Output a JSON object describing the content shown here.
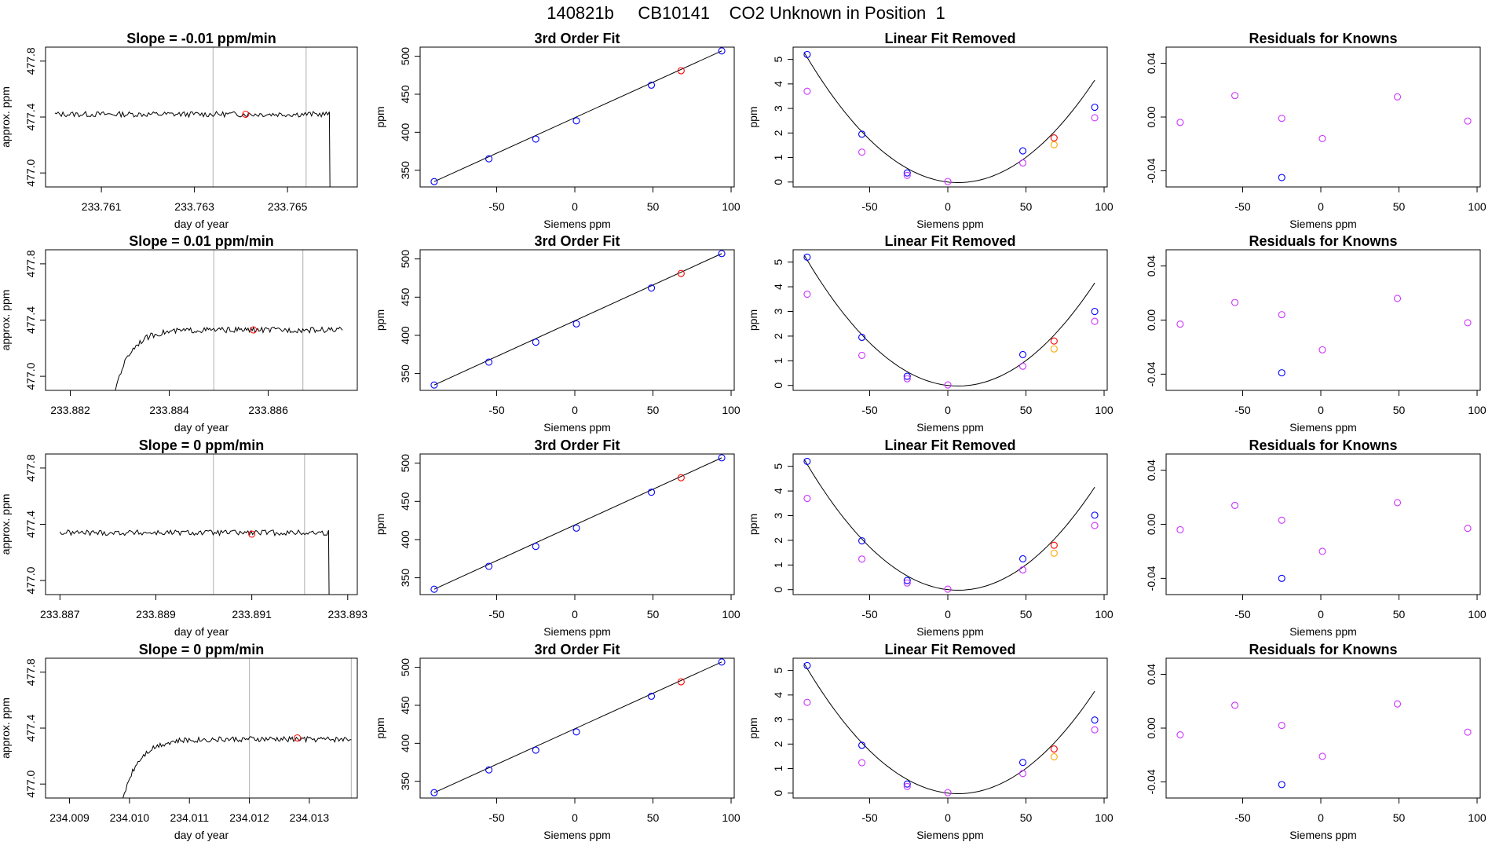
{
  "header": {
    "title": "140821b     CB10141    CO2 Unknown in Position  1"
  },
  "colors": {
    "black": "#000000",
    "blue": "#0000ff",
    "red": "#ff0000",
    "magenta": "#cc33ff",
    "orange": "#ffa500",
    "grey": "#bbbbbb"
  },
  "chart_data": [
    {
      "type": "line",
      "row": 1,
      "title": "Slope =  -0.01  ppm/min",
      "xlabel": "day of year",
      "ylabel": "approx. ppm",
      "xticks": [
        "233.761",
        "233.763",
        "233.765"
      ],
      "yticks": [
        "477.0",
        "477.4",
        "477.8"
      ],
      "xlim": [
        233.7598,
        233.7665
      ],
      "ylim": [
        476.9,
        477.9
      ],
      "vlines": [
        233.7634,
        233.7654
      ],
      "trace_level": 477.42,
      "trace_start": 233.76,
      "trace_end": 233.7659,
      "drop_at": 233.7659,
      "rise_at": null,
      "marker": {
        "x": 233.7641,
        "y": 477.42
      }
    },
    {
      "type": "scatter",
      "row": 1,
      "title": "3rd Order Fit",
      "xlabel": "Siemens ppm",
      "ylabel": "ppm",
      "xticks": [
        "-50",
        "0",
        "50",
        "100"
      ],
      "yticks": [
        "350",
        "400",
        "450",
        "500"
      ],
      "xlim": [
        -99,
        102
      ],
      "ylim": [
        328,
        512
      ],
      "points": [
        {
          "x": -90,
          "y": 335,
          "c": "blue"
        },
        {
          "x": -55,
          "y": 365,
          "c": "blue"
        },
        {
          "x": -25,
          "y": 391,
          "c": "blue"
        },
        {
          "x": 1,
          "y": 415,
          "c": "blue"
        },
        {
          "x": 49,
          "y": 462,
          "c": "blue"
        },
        {
          "x": 68,
          "y": 481,
          "c": "red"
        },
        {
          "x": 94,
          "y": 507,
          "c": "blue"
        }
      ],
      "line": [
        [
          -90,
          335
        ],
        [
          94,
          507
        ]
      ]
    },
    {
      "type": "scatter",
      "row": 1,
      "title": "Linear Fit Removed",
      "xlabel": "Siemens ppm",
      "ylabel": "ppm",
      "xticks": [
        "-50",
        "0",
        "50",
        "100"
      ],
      "yticks": [
        "0",
        "1",
        "2",
        "3",
        "4",
        "5"
      ],
      "xlim": [
        -99,
        102
      ],
      "ylim": [
        -0.2,
        5.5
      ],
      "points": [
        {
          "x": -90,
          "y": 5.2,
          "c": "blue"
        },
        {
          "x": -90,
          "y": 3.7,
          "c": "magenta"
        },
        {
          "x": -55,
          "y": 1.95,
          "c": "blue"
        },
        {
          "x": -55,
          "y": 1.22,
          "c": "magenta"
        },
        {
          "x": -26,
          "y": 0.37,
          "c": "blue"
        },
        {
          "x": -26,
          "y": 0.27,
          "c": "magenta"
        },
        {
          "x": 0,
          "y": 0.02,
          "c": "magenta"
        },
        {
          "x": 48,
          "y": 1.27,
          "c": "blue"
        },
        {
          "x": 48,
          "y": 0.78,
          "c": "magenta"
        },
        {
          "x": 68,
          "y": 1.8,
          "c": "red"
        },
        {
          "x": 68,
          "y": 1.52,
          "c": "orange"
        },
        {
          "x": 94,
          "y": 3.05,
          "c": "blue"
        },
        {
          "x": 94,
          "y": 2.62,
          "c": "magenta"
        }
      ],
      "curve": {
        "a": 0.000547,
        "b": -0.0072,
        "c": 0
      }
    },
    {
      "type": "scatter",
      "row": 1,
      "title": "Residuals for Knowns",
      "xlabel": "Siemens ppm",
      "ylabel": "",
      "xticks": [
        "-50",
        "0",
        "50",
        "100"
      ],
      "yticks": [
        "-0.04",
        "0.00",
        "0.04"
      ],
      "xlim": [
        -99,
        102
      ],
      "ylim": [
        -0.052,
        0.052
      ],
      "points": [
        {
          "x": -90,
          "y": -0.004,
          "c": "magenta"
        },
        {
          "x": -55,
          "y": 0.016,
          "c": "magenta"
        },
        {
          "x": -25,
          "y": -0.001,
          "c": "magenta"
        },
        {
          "x": -25,
          "y": -0.045,
          "c": "blue"
        },
        {
          "x": 1,
          "y": -0.016,
          "c": "magenta"
        },
        {
          "x": 49,
          "y": 0.015,
          "c": "magenta"
        },
        {
          "x": 94,
          "y": -0.003,
          "c": "magenta"
        }
      ]
    },
    {
      "type": "line",
      "row": 2,
      "title": "Slope =  0.01  ppm/min",
      "xlabel": "day of year",
      "ylabel": "approx. ppm",
      "xticks": [
        "233.882",
        "233.884",
        "233.886"
      ],
      "yticks": [
        "477.0",
        "477.4",
        "477.8"
      ],
      "xlim": [
        233.8815,
        233.8878
      ],
      "ylim": [
        476.9,
        477.9
      ],
      "vlines": [
        233.8849,
        233.8867
      ],
      "trace_level": 477.33,
      "trace_start": 233.8828,
      "trace_end": 233.8875,
      "drop_at": null,
      "rise_at": 233.8828,
      "marker": {
        "x": 233.8857,
        "y": 477.33
      }
    },
    {
      "type": "scatter",
      "row": 2,
      "title": "3rd Order Fit",
      "xlabel": "Siemens ppm",
      "ylabel": "ppm",
      "xticks": [
        "-50",
        "0",
        "50",
        "100"
      ],
      "yticks": [
        "350",
        "400",
        "450",
        "500"
      ],
      "xlim": [
        -99,
        102
      ],
      "ylim": [
        328,
        512
      ],
      "points": [
        {
          "x": -90,
          "y": 335,
          "c": "blue"
        },
        {
          "x": -55,
          "y": 365,
          "c": "blue"
        },
        {
          "x": -25,
          "y": 391,
          "c": "blue"
        },
        {
          "x": 1,
          "y": 415,
          "c": "blue"
        },
        {
          "x": 49,
          "y": 462,
          "c": "blue"
        },
        {
          "x": 68,
          "y": 481,
          "c": "red"
        },
        {
          "x": 94,
          "y": 507,
          "c": "blue"
        }
      ],
      "line": [
        [
          -90,
          335
        ],
        [
          94,
          507
        ]
      ]
    },
    {
      "type": "scatter",
      "row": 2,
      "title": "Linear Fit Removed",
      "xlabel": "Siemens ppm",
      "ylabel": "ppm",
      "xticks": [
        "-50",
        "0",
        "50",
        "100"
      ],
      "yticks": [
        "0",
        "1",
        "2",
        "3",
        "4",
        "5"
      ],
      "xlim": [
        -99,
        102
      ],
      "ylim": [
        -0.2,
        5.5
      ],
      "points": [
        {
          "x": -90,
          "y": 5.2,
          "c": "blue"
        },
        {
          "x": -90,
          "y": 3.7,
          "c": "magenta"
        },
        {
          "x": -55,
          "y": 1.95,
          "c": "blue"
        },
        {
          "x": -55,
          "y": 1.22,
          "c": "magenta"
        },
        {
          "x": -26,
          "y": 0.37,
          "c": "blue"
        },
        {
          "x": -26,
          "y": 0.27,
          "c": "magenta"
        },
        {
          "x": 0,
          "y": 0.02,
          "c": "magenta"
        },
        {
          "x": 48,
          "y": 1.25,
          "c": "blue"
        },
        {
          "x": 48,
          "y": 0.78,
          "c": "magenta"
        },
        {
          "x": 68,
          "y": 1.8,
          "c": "red"
        },
        {
          "x": 68,
          "y": 1.48,
          "c": "orange"
        },
        {
          "x": 94,
          "y": 3.0,
          "c": "blue"
        },
        {
          "x": 94,
          "y": 2.6,
          "c": "magenta"
        }
      ],
      "curve": {
        "a": 0.000547,
        "b": -0.0072,
        "c": 0
      }
    },
    {
      "type": "scatter",
      "row": 2,
      "title": "Residuals for Knowns",
      "xlabel": "Siemens ppm",
      "ylabel": "",
      "xticks": [
        "-50",
        "0",
        "50",
        "100"
      ],
      "yticks": [
        "-0.04",
        "0.00",
        "0.04"
      ],
      "xlim": [
        -99,
        102
      ],
      "ylim": [
        -0.052,
        0.052
      ],
      "points": [
        {
          "x": -90,
          "y": -0.003,
          "c": "magenta"
        },
        {
          "x": -55,
          "y": 0.013,
          "c": "magenta"
        },
        {
          "x": -25,
          "y": 0.004,
          "c": "magenta"
        },
        {
          "x": -25,
          "y": -0.039,
          "c": "blue"
        },
        {
          "x": 1,
          "y": -0.022,
          "c": "magenta"
        },
        {
          "x": 49,
          "y": 0.016,
          "c": "magenta"
        },
        {
          "x": 94,
          "y": -0.002,
          "c": "magenta"
        }
      ]
    },
    {
      "type": "line",
      "row": 3,
      "title": "Slope =  0  ppm/min",
      "xlabel": "day of year",
      "ylabel": "approx. ppm",
      "xticks": [
        "233.887",
        "233.889",
        "233.891",
        "233.893"
      ],
      "yticks": [
        "477.0",
        "477.4",
        "477.8"
      ],
      "xlim": [
        233.8867,
        233.8932
      ],
      "ylim": [
        476.9,
        477.9
      ],
      "vlines": [
        233.8902,
        233.8921
      ],
      "trace_level": 477.34,
      "trace_start": 233.887,
      "trace_end": 233.8926,
      "drop_at": 233.8926,
      "rise_at": null,
      "marker": {
        "x": 233.891,
        "y": 477.33
      }
    },
    {
      "type": "scatter",
      "row": 3,
      "title": "3rd Order Fit",
      "xlabel": "Siemens ppm",
      "ylabel": "ppm",
      "xticks": [
        "-50",
        "0",
        "50",
        "100"
      ],
      "yticks": [
        "350",
        "400",
        "450",
        "500"
      ],
      "xlim": [
        -99,
        102
      ],
      "ylim": [
        328,
        512
      ],
      "points": [
        {
          "x": -90,
          "y": 335,
          "c": "blue"
        },
        {
          "x": -55,
          "y": 365,
          "c": "blue"
        },
        {
          "x": -25,
          "y": 391,
          "c": "blue"
        },
        {
          "x": 1,
          "y": 415,
          "c": "blue"
        },
        {
          "x": 49,
          "y": 462,
          "c": "blue"
        },
        {
          "x": 68,
          "y": 481,
          "c": "red"
        },
        {
          "x": 94,
          "y": 507,
          "c": "blue"
        }
      ],
      "line": [
        [
          -90,
          335
        ],
        [
          94,
          507
        ]
      ]
    },
    {
      "type": "scatter",
      "row": 3,
      "title": "Linear Fit Removed",
      "xlabel": "Siemens ppm",
      "ylabel": "ppm",
      "xticks": [
        "-50",
        "0",
        "50",
        "100"
      ],
      "yticks": [
        "0",
        "1",
        "2",
        "3",
        "4",
        "5"
      ],
      "xlim": [
        -99,
        102
      ],
      "ylim": [
        -0.2,
        5.5
      ],
      "points": [
        {
          "x": -90,
          "y": 5.2,
          "c": "blue"
        },
        {
          "x": -90,
          "y": 3.7,
          "c": "magenta"
        },
        {
          "x": -55,
          "y": 1.98,
          "c": "blue"
        },
        {
          "x": -55,
          "y": 1.24,
          "c": "magenta"
        },
        {
          "x": -26,
          "y": 0.37,
          "c": "blue"
        },
        {
          "x": -26,
          "y": 0.27,
          "c": "magenta"
        },
        {
          "x": 0,
          "y": 0.02,
          "c": "magenta"
        },
        {
          "x": 48,
          "y": 1.25,
          "c": "blue"
        },
        {
          "x": 48,
          "y": 0.8,
          "c": "magenta"
        },
        {
          "x": 68,
          "y": 1.8,
          "c": "red"
        },
        {
          "x": 68,
          "y": 1.48,
          "c": "orange"
        },
        {
          "x": 94,
          "y": 3.02,
          "c": "blue"
        },
        {
          "x": 94,
          "y": 2.6,
          "c": "magenta"
        }
      ],
      "curve": {
        "a": 0.000547,
        "b": -0.0072,
        "c": 0
      }
    },
    {
      "type": "scatter",
      "row": 3,
      "title": "Residuals for Knowns",
      "xlabel": "Siemens ppm",
      "ylabel": "",
      "xticks": [
        "-50",
        "0",
        "50",
        "100"
      ],
      "yticks": [
        "-0.04",
        "0.00",
        "0.04"
      ],
      "xlim": [
        -99,
        102
      ],
      "ylim": [
        -0.052,
        0.052
      ],
      "points": [
        {
          "x": -90,
          "y": -0.004,
          "c": "magenta"
        },
        {
          "x": -55,
          "y": 0.014,
          "c": "magenta"
        },
        {
          "x": -25,
          "y": 0.003,
          "c": "magenta"
        },
        {
          "x": -25,
          "y": -0.04,
          "c": "blue"
        },
        {
          "x": 1,
          "y": -0.02,
          "c": "magenta"
        },
        {
          "x": 49,
          "y": 0.016,
          "c": "magenta"
        },
        {
          "x": 94,
          "y": -0.003,
          "c": "magenta"
        }
      ]
    },
    {
      "type": "line",
      "row": 4,
      "title": "Slope =  0  ppm/min",
      "xlabel": "day of year",
      "ylabel": "approx. ppm",
      "xticks": [
        "234.009",
        "234.010",
        "234.011",
        "234.012",
        "234.013"
      ],
      "yticks": [
        "477.0",
        "477.4",
        "477.8"
      ],
      "xlim": [
        234.0086,
        234.0138
      ],
      "ylim": [
        476.9,
        477.9
      ],
      "vlines": [
        234.012,
        234.0137
      ],
      "trace_level": 477.32,
      "trace_start": 234.0098,
      "trace_end": 234.0137,
      "drop_at": null,
      "rise_at": 234.0098,
      "marker": {
        "x": 234.0128,
        "y": 477.33
      }
    },
    {
      "type": "scatter",
      "row": 4,
      "title": "3rd Order Fit",
      "xlabel": "Siemens ppm",
      "ylabel": "ppm",
      "xticks": [
        "-50",
        "0",
        "50",
        "100"
      ],
      "yticks": [
        "350",
        "400",
        "450",
        "500"
      ],
      "xlim": [
        -99,
        102
      ],
      "ylim": [
        328,
        512
      ],
      "points": [
        {
          "x": -90,
          "y": 335,
          "c": "blue"
        },
        {
          "x": -55,
          "y": 365,
          "c": "blue"
        },
        {
          "x": -25,
          "y": 391,
          "c": "blue"
        },
        {
          "x": 1,
          "y": 415,
          "c": "blue"
        },
        {
          "x": 49,
          "y": 462,
          "c": "blue"
        },
        {
          "x": 68,
          "y": 481,
          "c": "red"
        },
        {
          "x": 94,
          "y": 507,
          "c": "blue"
        }
      ],
      "line": [
        [
          -90,
          335
        ],
        [
          94,
          507
        ]
      ]
    },
    {
      "type": "scatter",
      "row": 4,
      "title": "Linear Fit Removed",
      "xlabel": "Siemens ppm",
      "ylabel": "ppm",
      "xticks": [
        "-50",
        "0",
        "50",
        "100"
      ],
      "yticks": [
        "0",
        "1",
        "2",
        "3",
        "4",
        "5"
      ],
      "xlim": [
        -99,
        102
      ],
      "ylim": [
        -0.2,
        5.5
      ],
      "points": [
        {
          "x": -90,
          "y": 5.2,
          "c": "blue"
        },
        {
          "x": -90,
          "y": 3.7,
          "c": "magenta"
        },
        {
          "x": -55,
          "y": 1.95,
          "c": "blue"
        },
        {
          "x": -55,
          "y": 1.24,
          "c": "magenta"
        },
        {
          "x": -26,
          "y": 0.37,
          "c": "blue"
        },
        {
          "x": -26,
          "y": 0.27,
          "c": "magenta"
        },
        {
          "x": 0,
          "y": 0.02,
          "c": "magenta"
        },
        {
          "x": 48,
          "y": 1.25,
          "c": "blue"
        },
        {
          "x": 48,
          "y": 0.8,
          "c": "magenta"
        },
        {
          "x": 68,
          "y": 1.8,
          "c": "red"
        },
        {
          "x": 68,
          "y": 1.48,
          "c": "orange"
        },
        {
          "x": 94,
          "y": 2.98,
          "c": "blue"
        },
        {
          "x": 94,
          "y": 2.58,
          "c": "magenta"
        }
      ],
      "curve": {
        "a": 0.000547,
        "b": -0.0072,
        "c": 0
      }
    },
    {
      "type": "scatter",
      "row": 4,
      "title": "Residuals for Knowns",
      "xlabel": "Siemens ppm",
      "ylabel": "",
      "xticks": [
        "-50",
        "0",
        "50",
        "100"
      ],
      "yticks": [
        "-0.04",
        "0.00",
        "0.04"
      ],
      "xlim": [
        -99,
        102
      ],
      "ylim": [
        -0.052,
        0.052
      ],
      "points": [
        {
          "x": -90,
          "y": -0.005,
          "c": "magenta"
        },
        {
          "x": -55,
          "y": 0.017,
          "c": "magenta"
        },
        {
          "x": -25,
          "y": 0.002,
          "c": "magenta"
        },
        {
          "x": -25,
          "y": -0.042,
          "c": "blue"
        },
        {
          "x": 1,
          "y": -0.021,
          "c": "magenta"
        },
        {
          "x": 49,
          "y": 0.018,
          "c": "magenta"
        },
        {
          "x": 94,
          "y": -0.003,
          "c": "magenta"
        }
      ]
    }
  ]
}
